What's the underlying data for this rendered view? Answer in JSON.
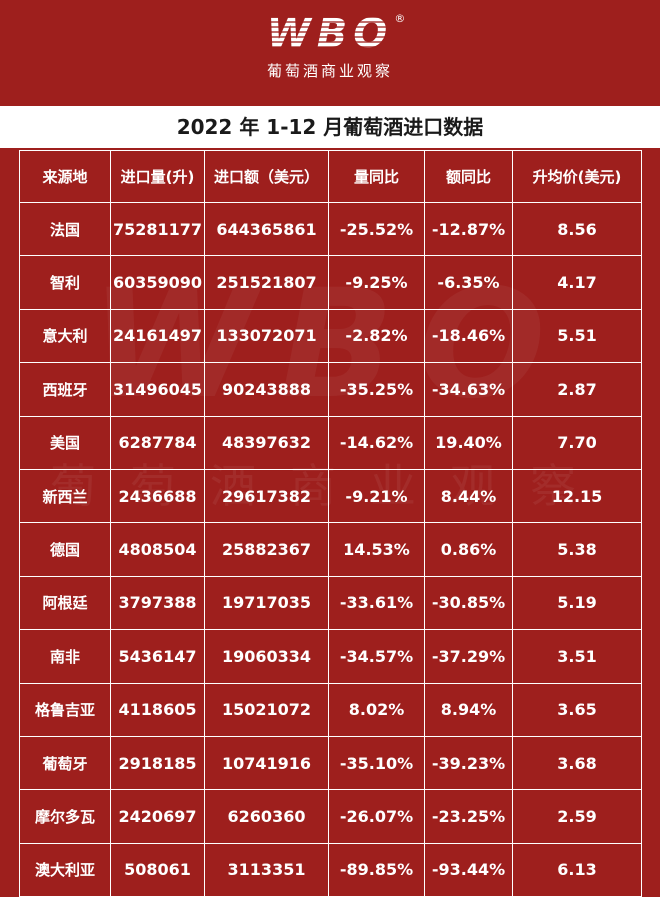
{
  "brand": {
    "logo": "WBO",
    "registered": "®",
    "subtitle": "葡萄酒商业观察"
  },
  "title": "2022 年 1-12 月葡萄酒进口数据",
  "watermark": {
    "logo": "WBO",
    "subtitle": "葡萄酒商业观察"
  },
  "table": {
    "headers": [
      "来源地",
      "进口量(升)",
      "进口额（美元）",
      "量同比",
      "额同比",
      "升均价(美元)"
    ],
    "rows": [
      [
        "法国",
        "75281177",
        "644365861",
        "-25.52%",
        "-12.87%",
        "8.56"
      ],
      [
        "智利",
        "60359090",
        "251521807",
        "-9.25%",
        "-6.35%",
        "4.17"
      ],
      [
        "意大利",
        "24161497",
        "133072071",
        "-2.82%",
        "-18.46%",
        "5.51"
      ],
      [
        "西班牙",
        "31496045",
        "90243888",
        "-35.25%",
        "-34.63%",
        "2.87"
      ],
      [
        "美国",
        "6287784",
        "48397632",
        "-14.62%",
        "19.40%",
        "7.70"
      ],
      [
        "新西兰",
        "2436688",
        "29617382",
        "-9.21%",
        "8.44%",
        "12.15"
      ],
      [
        "德国",
        "4808504",
        "25882367",
        "14.53%",
        "0.86%",
        "5.38"
      ],
      [
        "阿根廷",
        "3797388",
        "19717035",
        "-33.61%",
        "-30.85%",
        "5.19"
      ],
      [
        "南非",
        "5436147",
        "19060334",
        "-34.57%",
        "-37.29%",
        "3.51"
      ],
      [
        "格鲁吉亚",
        "4118605",
        "15021072",
        "8.02%",
        "8.94%",
        "3.65"
      ],
      [
        "葡萄牙",
        "2918185",
        "10741916",
        "-35.10%",
        "-39.23%",
        "3.68"
      ],
      [
        "摩尔多瓦",
        "2420697",
        "6260360",
        "-26.07%",
        "-23.25%",
        "2.59"
      ],
      [
        "澳大利亚",
        "508061",
        "3113351",
        "-89.85%",
        "-93.44%",
        "6.13"
      ]
    ]
  },
  "colors": {
    "background": "#9e1f1d",
    "text": "#ffffff",
    "title_bar": "#ffffff",
    "title_text": "#1a1a1a"
  }
}
